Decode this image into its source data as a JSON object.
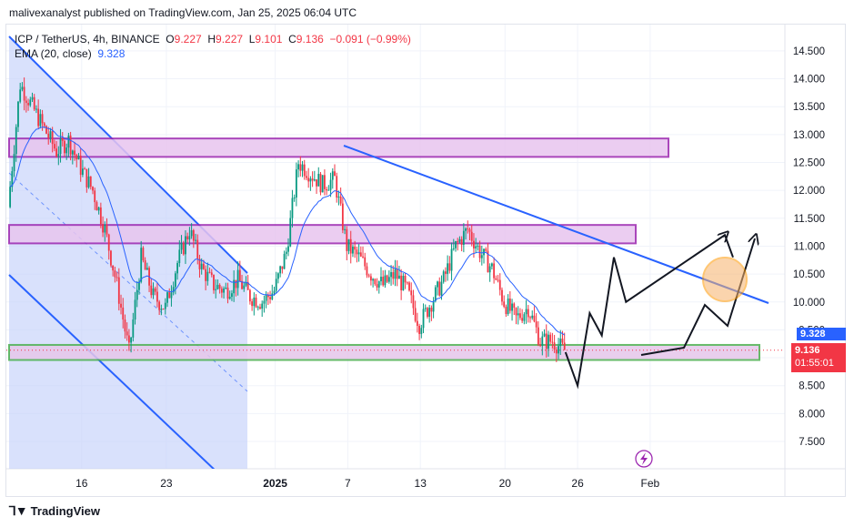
{
  "publisher": "malivexanalyst published on TradingView.com, Jan 25, 2025 06:04 UTC",
  "legend": {
    "symbol": "ICP / TetherUS, 4h, BINANCE",
    "o_label": "O",
    "o": "9.227",
    "h_label": "H",
    "h": "9.227",
    "l_label": "L",
    "l": "9.101",
    "c_label": "C",
    "c": "9.136",
    "change": "−0.091 (−0.99%)",
    "ema_label": "EMA (20, close)",
    "ema_value": "9.328"
  },
  "price_badges": {
    "ema": "9.328",
    "last": "9.136",
    "countdown": "01:55:01"
  },
  "brand": "TradingView",
  "colors": {
    "up": "#089981",
    "down": "#f23645",
    "ema": "#2962ff",
    "trendline": "#2962ff",
    "zone_purple": "#9c27b0",
    "zone_green": "#4caf50",
    "channel_fill": "#c5d1fb",
    "circle": "#ff9800"
  },
  "chart_data": {
    "type": "candlestick",
    "title": "ICP / TetherUS, 4h, BINANCE",
    "y_axis": {
      "ylim": [
        7.0,
        15.0
      ],
      "ticks": [
        "7.500",
        "8.000",
        "8.500",
        "9.000",
        "9.500",
        "10.000",
        "10.500",
        "11.000",
        "11.500",
        "12.000",
        "12.500",
        "13.000",
        "13.500",
        "14.000",
        "14.500"
      ]
    },
    "x_axis": {
      "ticks": [
        "16",
        "23",
        "2025",
        "7",
        "13",
        "20",
        "26",
        "Feb"
      ]
    },
    "ema_period": 20,
    "price_path": [
      {
        "date": "Dec 10",
        "price": 11.7
      },
      {
        "date": "Dec 11",
        "price": 13.9
      },
      {
        "date": "Dec 12",
        "price": 13.5
      },
      {
        "date": "Dec 13",
        "price": 13.1
      },
      {
        "date": "Dec 14",
        "price": 12.7
      },
      {
        "date": "Dec 15",
        "price": 12.9
      },
      {
        "date": "Dec 16",
        "price": 12.4
      },
      {
        "date": "Dec 17",
        "price": 12.0
      },
      {
        "date": "Dec 18",
        "price": 11.3
      },
      {
        "date": "Dec 19",
        "price": 10.3
      },
      {
        "date": "Dec 20",
        "price": 9.1
      },
      {
        "date": "Dec 21",
        "price": 10.8
      },
      {
        "date": "Dec 22",
        "price": 10.1
      },
      {
        "date": "Dec 23",
        "price": 9.9
      },
      {
        "date": "Dec 24",
        "price": 10.7
      },
      {
        "date": "Dec 25",
        "price": 11.3
      },
      {
        "date": "Dec 26",
        "price": 10.6
      },
      {
        "date": "Dec 27",
        "price": 10.3
      },
      {
        "date": "Dec 28",
        "price": 10.2
      },
      {
        "date": "Dec 29",
        "price": 10.4
      },
      {
        "date": "Dec 30",
        "price": 10.1
      },
      {
        "date": "Dec 31",
        "price": 10.0
      },
      {
        "date": "Jan 1",
        "price": 10.2
      },
      {
        "date": "Jan 2",
        "price": 10.9
      },
      {
        "date": "Jan 3",
        "price": 12.5
      },
      {
        "date": "Jan 4",
        "price": 12.3
      },
      {
        "date": "Jan 5",
        "price": 12.1
      },
      {
        "date": "Jan 6",
        "price": 12.2
      },
      {
        "date": "Jan 7",
        "price": 11.0
      },
      {
        "date": "Jan 8",
        "price": 10.8
      },
      {
        "date": "Jan 9",
        "price": 10.5
      },
      {
        "date": "Jan 10",
        "price": 10.3
      },
      {
        "date": "Jan 11",
        "price": 10.5
      },
      {
        "date": "Jan 12",
        "price": 10.2
      },
      {
        "date": "Jan 13",
        "price": 9.6
      },
      {
        "date": "Jan 14",
        "price": 10.0
      },
      {
        "date": "Jan 15",
        "price": 10.4
      },
      {
        "date": "Jan 16",
        "price": 11.0
      },
      {
        "date": "Jan 17",
        "price": 11.3
      },
      {
        "date": "Jan 18",
        "price": 10.9
      },
      {
        "date": "Jan 19",
        "price": 10.6
      },
      {
        "date": "Jan 20",
        "price": 10.0
      },
      {
        "date": "Jan 21",
        "price": 9.7
      },
      {
        "date": "Jan 22",
        "price": 9.9
      },
      {
        "date": "Jan 23",
        "price": 9.3
      },
      {
        "date": "Jan 24",
        "price": 9.3
      },
      {
        "date": "Jan 25",
        "price": 9.136
      }
    ],
    "zones": [
      {
        "type": "resistance",
        "from": 12.6,
        "to": 12.93
      },
      {
        "type": "resistance",
        "from": 11.05,
        "to": 11.38
      },
      {
        "type": "support",
        "from": 8.96,
        "to": 9.23
      }
    ],
    "projection": [
      {
        "date": "Jan 25",
        "price": 9.1
      },
      {
        "date": "Jan 26",
        "price": 8.5
      },
      {
        "date": "Jan 27",
        "price": 9.8
      },
      {
        "date": "Jan 28",
        "price": 9.4
      },
      {
        "date": "Jan 29",
        "price": 10.8
      },
      {
        "date": "Jan 30",
        "price": 10.0
      },
      {
        "date": "Feb 1",
        "price": 11.2
      },
      {
        "date": "Feb 2",
        "price": 10.8
      }
    ]
  }
}
